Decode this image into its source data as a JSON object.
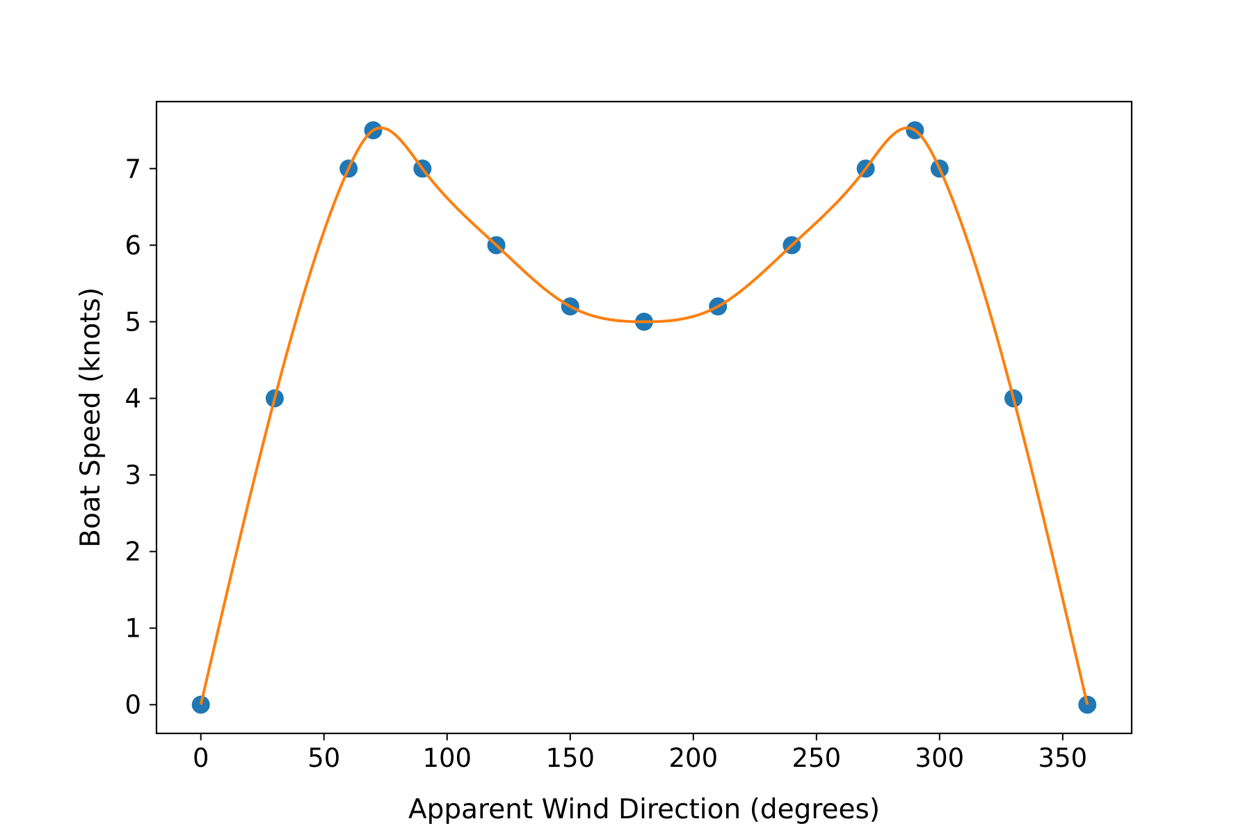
{
  "chart_data": {
    "type": "scatter",
    "title": "",
    "xlabel": "Apparent Wind Direction (degrees)",
    "ylabel": "Boat Speed (knots)",
    "xlim": [
      -18,
      378
    ],
    "ylim": [
      -0.375,
      7.875
    ],
    "xticks": [
      0,
      50,
      100,
      150,
      200,
      250,
      300,
      350
    ],
    "yticks": [
      0,
      1,
      2,
      3,
      4,
      5,
      6,
      7
    ],
    "grid": false,
    "legend": "none",
    "series": [
      {
        "kind": "scatter",
        "color": "#1f77b4",
        "x": [
          0,
          30,
          60,
          70,
          90,
          120,
          150,
          180,
          210,
          240,
          270,
          290,
          300,
          330,
          360
        ],
        "y": [
          0,
          4,
          7,
          7.5,
          7,
          6,
          5.2,
          5,
          5.2,
          6,
          7,
          7.5,
          7,
          4,
          0
        ]
      },
      {
        "kind": "line",
        "color": "#ff7f0e",
        "smooth": true,
        "x": [
          0,
          30,
          60,
          70,
          90,
          120,
          150,
          180,
          210,
          240,
          270,
          290,
          300,
          330,
          360
        ],
        "y": [
          0,
          4,
          7,
          7.5,
          7,
          6,
          5.2,
          5,
          5.2,
          6,
          7,
          7.5,
          7,
          4,
          0
        ]
      }
    ]
  }
}
